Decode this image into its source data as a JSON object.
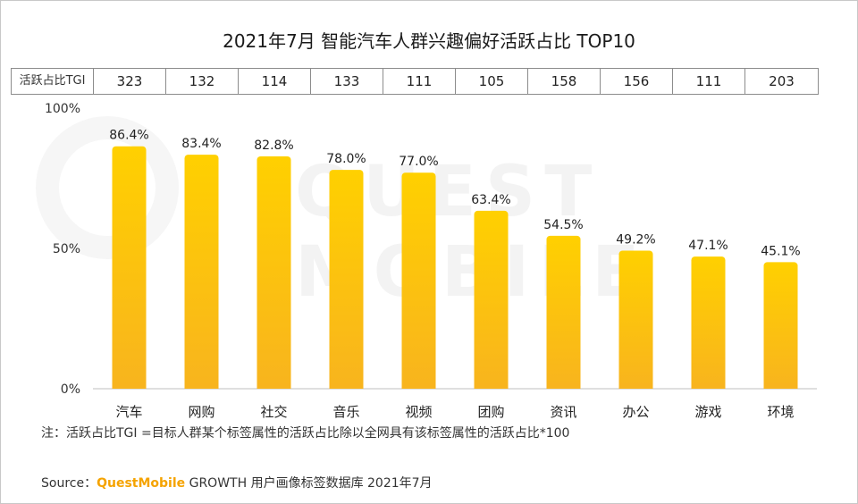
{
  "title": "2021年7月 智能汽车人群兴趣偏好活跃占比 TOP10",
  "tgi_row": {
    "header": "活跃占比TGI",
    "values": [
      "323",
      "132",
      "114",
      "133",
      "111",
      "105",
      "158",
      "156",
      "111",
      "203"
    ]
  },
  "chart_data": {
    "type": "bar",
    "categories": [
      "汽车",
      "网购",
      "社交",
      "音乐",
      "视频",
      "团购",
      "资讯",
      "办公",
      "游戏",
      "环境"
    ],
    "values": [
      86.4,
      83.4,
      82.8,
      78.0,
      77.0,
      63.4,
      54.5,
      49.2,
      47.1,
      45.1
    ],
    "data_labels": [
      "86.4%",
      "83.4%",
      "82.8%",
      "78.0%",
      "77.0%",
      "63.4%",
      "54.5%",
      "49.2%",
      "47.1%",
      "45.1%"
    ],
    "ylim": [
      0,
      100
    ],
    "yticks": [
      "0%",
      "50%",
      "100%"
    ],
    "xlabel": "",
    "ylabel": "",
    "grid": false,
    "bar_color_top": "#ffd000",
    "bar_color_bottom": "#f8b41e"
  },
  "watermark": "QUEST MOBILE",
  "note": "注：活跃占比TGI =目标人群某个标签属性的活跃占比除以全网具有该标签属性的活跃占比*100",
  "source": {
    "prefix": "Source：",
    "brand": "QuestMobile",
    "suffix": " GROWTH 用户画像标签数据库 2021年7月"
  }
}
